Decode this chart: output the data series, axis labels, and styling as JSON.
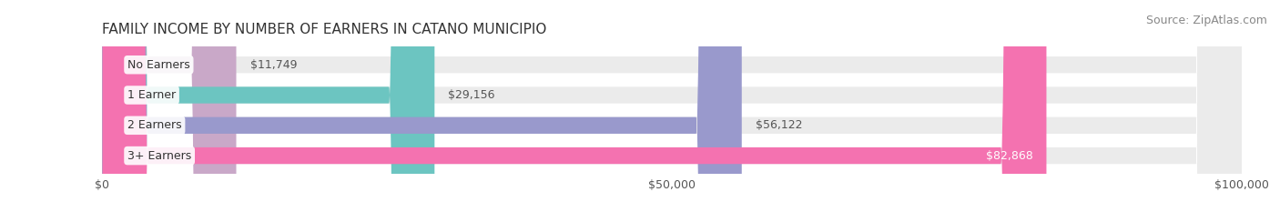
{
  "title": "FAMILY INCOME BY NUMBER OF EARNERS IN CATANO MUNICIPIO",
  "source": "Source: ZipAtlas.com",
  "categories": [
    "No Earners",
    "1 Earner",
    "2 Earners",
    "3+ Earners"
  ],
  "values": [
    11749,
    29156,
    56122,
    82868
  ],
  "bar_colors": [
    "#c9a8c8",
    "#6cc5c1",
    "#9999cc",
    "#f472b0"
  ],
  "bar_bg_color": "#ebebeb",
  "value_labels": [
    "$11,749",
    "$29,156",
    "$56,122",
    "$82,868"
  ],
  "xlim": [
    0,
    100000
  ],
  "xticks": [
    0,
    50000,
    100000
  ],
  "xtick_labels": [
    "$0",
    "$50,000",
    "$100,000"
  ],
  "title_fontsize": 11,
  "source_fontsize": 9,
  "label_fontsize": 9,
  "tick_fontsize": 9,
  "background_color": "#ffffff",
  "bar_height": 0.55
}
